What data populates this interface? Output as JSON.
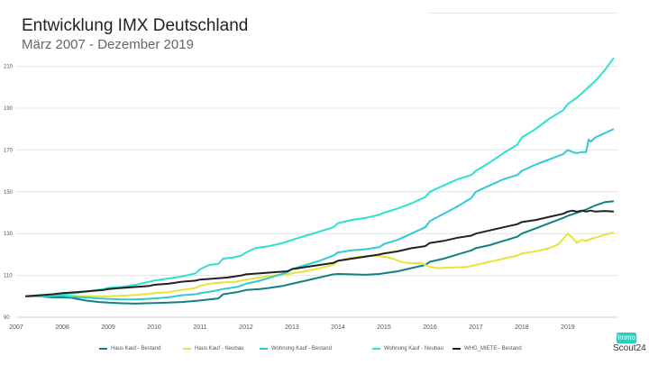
{
  "header": {
    "title": "Entwicklung IMX Deutschland",
    "subtitle": "März 2007 - Dezember 2019"
  },
  "logo": {
    "top": "Immo",
    "bottom": "Scout24"
  },
  "chart_data": {
    "type": "line",
    "title": "Entwicklung IMX Deutschland",
    "subtitle": "März 2007 - Dezember 2019",
    "xlabel": "",
    "ylabel": "",
    "xlim": [
      2007.0,
      2020.1
    ],
    "ylim": [
      90,
      215
    ],
    "y_ticks": [
      90,
      110,
      130,
      150,
      170,
      190,
      210
    ],
    "x_ticks": [
      "2007",
      "2008",
      "2009",
      "2010",
      "2011",
      "2012",
      "2013",
      "2014",
      "2015",
      "2016",
      "2017",
      "2018",
      "2019"
    ],
    "grid": "horizontal",
    "legend_position": "bottom",
    "series": [
      {
        "name": "Haus Kauf - Bestand",
        "color": "#127f86",
        "points": [
          [
            2007.2,
            100
          ],
          [
            2007.5,
            100
          ],
          [
            2007.8,
            99.5
          ],
          [
            2008.0,
            99.5
          ],
          [
            2008.2,
            99.3
          ],
          [
            2008.5,
            98
          ],
          [
            2008.8,
            97.3
          ],
          [
            2009.0,
            97
          ],
          [
            2009.3,
            96.7
          ],
          [
            2009.6,
            96.5
          ],
          [
            2009.8,
            96.7
          ],
          [
            2010.0,
            96.8
          ],
          [
            2010.3,
            97
          ],
          [
            2010.6,
            97.3
          ],
          [
            2010.9,
            97.8
          ],
          [
            2011.2,
            98.5
          ],
          [
            2011.4,
            99
          ],
          [
            2011.5,
            101
          ],
          [
            2011.8,
            102
          ],
          [
            2012.0,
            103
          ],
          [
            2012.3,
            103.5
          ],
          [
            2012.5,
            104
          ],
          [
            2012.8,
            105
          ],
          [
            2013.0,
            106
          ],
          [
            2013.3,
            107.5
          ],
          [
            2013.6,
            109
          ],
          [
            2013.9,
            110.5
          ],
          [
            2014.0,
            110.7
          ],
          [
            2014.3,
            110.5
          ],
          [
            2014.6,
            110.3
          ],
          [
            2014.9,
            110.7
          ],
          [
            2015.0,
            111
          ],
          [
            2015.3,
            112
          ],
          [
            2015.6,
            113.5
          ],
          [
            2015.9,
            115
          ],
          [
            2016.0,
            116.5
          ],
          [
            2016.3,
            118
          ],
          [
            2016.6,
            120
          ],
          [
            2016.9,
            122
          ],
          [
            2017.0,
            123
          ],
          [
            2017.3,
            124.5
          ],
          [
            2017.6,
            126.5
          ],
          [
            2017.9,
            128.5
          ],
          [
            2018.0,
            130
          ],
          [
            2018.3,
            132.5
          ],
          [
            2018.6,
            135
          ],
          [
            2018.9,
            137.5
          ],
          [
            2019.0,
            138.5
          ],
          [
            2019.2,
            140
          ],
          [
            2019.4,
            141.5
          ],
          [
            2019.6,
            143.5
          ],
          [
            2019.8,
            145
          ],
          [
            2020.0,
            145.5
          ]
        ]
      },
      {
        "name": "Haus Kauf - Neubau",
        "color": "#e8e33a",
        "points": [
          [
            2007.2,
            100
          ],
          [
            2007.5,
            100
          ],
          [
            2007.8,
            100.2
          ],
          [
            2008.0,
            100.5
          ],
          [
            2008.2,
            100.3
          ],
          [
            2008.5,
            100
          ],
          [
            2008.8,
            100
          ],
          [
            2009.0,
            100
          ],
          [
            2009.3,
            100.3
          ],
          [
            2009.6,
            100.7
          ],
          [
            2009.8,
            101
          ],
          [
            2010.0,
            101.5
          ],
          [
            2010.3,
            102
          ],
          [
            2010.6,
            103
          ],
          [
            2010.9,
            104
          ],
          [
            2011.0,
            105
          ],
          [
            2011.2,
            106
          ],
          [
            2011.4,
            106.5
          ],
          [
            2011.6,
            106.8
          ],
          [
            2011.8,
            107
          ],
          [
            2012.0,
            108
          ],
          [
            2012.3,
            109
          ],
          [
            2012.6,
            110
          ],
          [
            2012.9,
            110.5
          ],
          [
            2013.0,
            111
          ],
          [
            2013.3,
            112
          ],
          [
            2013.6,
            113.5
          ],
          [
            2013.9,
            115
          ],
          [
            2014.0,
            117
          ],
          [
            2014.3,
            118.5
          ],
          [
            2014.6,
            119.3
          ],
          [
            2014.8,
            119.5
          ],
          [
            2015.0,
            119
          ],
          [
            2015.2,
            118
          ],
          [
            2015.4,
            116.3
          ],
          [
            2015.6,
            115.8
          ],
          [
            2015.8,
            116
          ],
          [
            2015.9,
            115
          ],
          [
            2016.0,
            114
          ],
          [
            2016.2,
            113.5
          ],
          [
            2016.5,
            113.8
          ],
          [
            2016.8,
            114
          ],
          [
            2017.0,
            115
          ],
          [
            2017.3,
            116.5
          ],
          [
            2017.6,
            118
          ],
          [
            2017.9,
            119.5
          ],
          [
            2018.0,
            120.5
          ],
          [
            2018.3,
            121.5
          ],
          [
            2018.6,
            123
          ],
          [
            2018.8,
            125
          ],
          [
            2018.9,
            127.5
          ],
          [
            2019.0,
            130
          ],
          [
            2019.1,
            128
          ],
          [
            2019.2,
            125.5
          ],
          [
            2019.3,
            127
          ],
          [
            2019.4,
            126.5
          ],
          [
            2019.5,
            127.5
          ],
          [
            2019.6,
            128
          ],
          [
            2019.8,
            129.5
          ],
          [
            2020.0,
            130.5
          ]
        ]
      },
      {
        "name": "Wohnung Kauf - Bestand",
        "color": "#31c9d6",
        "points": [
          [
            2007.2,
            100
          ],
          [
            2007.5,
            100
          ],
          [
            2007.8,
            100.2
          ],
          [
            2008.0,
            100.2
          ],
          [
            2008.2,
            99.8
          ],
          [
            2008.5,
            99.5
          ],
          [
            2008.8,
            99
          ],
          [
            2009.0,
            98.8
          ],
          [
            2009.3,
            98.5
          ],
          [
            2009.6,
            98.5
          ],
          [
            2009.8,
            98.7
          ],
          [
            2010.0,
            99
          ],
          [
            2010.3,
            99.5
          ],
          [
            2010.6,
            100.5
          ],
          [
            2010.9,
            101
          ],
          [
            2011.0,
            101.5
          ],
          [
            2011.3,
            102.5
          ],
          [
            2011.5,
            103.5
          ],
          [
            2011.8,
            104.5
          ],
          [
            2012.0,
            106
          ],
          [
            2012.3,
            107.5
          ],
          [
            2012.6,
            109.5
          ],
          [
            2012.9,
            111.5
          ],
          [
            2013.0,
            113
          ],
          [
            2013.3,
            115
          ],
          [
            2013.6,
            117
          ],
          [
            2013.9,
            119.5
          ],
          [
            2014.0,
            121
          ],
          [
            2014.3,
            122
          ],
          [
            2014.6,
            122.5
          ],
          [
            2014.9,
            123.5
          ],
          [
            2015.0,
            125
          ],
          [
            2015.3,
            127
          ],
          [
            2015.6,
            130
          ],
          [
            2015.9,
            133
          ],
          [
            2016.0,
            136
          ],
          [
            2016.3,
            139.5
          ],
          [
            2016.6,
            143
          ],
          [
            2016.9,
            147
          ],
          [
            2017.0,
            150
          ],
          [
            2017.3,
            153
          ],
          [
            2017.6,
            156
          ],
          [
            2017.9,
            158
          ],
          [
            2018.0,
            160
          ],
          [
            2018.3,
            163
          ],
          [
            2018.6,
            165.5
          ],
          [
            2018.9,
            168
          ],
          [
            2019.0,
            170
          ],
          [
            2019.1,
            169
          ],
          [
            2019.2,
            168.5
          ],
          [
            2019.3,
            169
          ],
          [
            2019.4,
            169
          ],
          [
            2019.45,
            175
          ],
          [
            2019.5,
            174
          ],
          [
            2019.6,
            176
          ],
          [
            2019.8,
            178
          ],
          [
            2019.9,
            179
          ],
          [
            2020.0,
            180
          ]
        ]
      },
      {
        "name": "Wohnung Kauf - Neubau",
        "color": "#2ee0cf",
        "points": [
          [
            2007.2,
            100
          ],
          [
            2007.5,
            100
          ],
          [
            2007.8,
            100.5
          ],
          [
            2008.0,
            101
          ],
          [
            2008.3,
            101.5
          ],
          [
            2008.6,
            102.5
          ],
          [
            2008.9,
            103.5
          ],
          [
            2009.0,
            104
          ],
          [
            2009.3,
            104.5
          ],
          [
            2009.6,
            105.5
          ],
          [
            2009.8,
            106.5
          ],
          [
            2010.0,
            107.5
          ],
          [
            2010.3,
            108.5
          ],
          [
            2010.6,
            109.5
          ],
          [
            2010.9,
            111
          ],
          [
            2011.0,
            113
          ],
          [
            2011.2,
            115
          ],
          [
            2011.4,
            115.5
          ],
          [
            2011.5,
            118
          ],
          [
            2011.7,
            118.5
          ],
          [
            2011.9,
            119.5
          ],
          [
            2012.0,
            121
          ],
          [
            2012.2,
            123
          ],
          [
            2012.5,
            124
          ],
          [
            2012.8,
            125.5
          ],
          [
            2013.0,
            127
          ],
          [
            2013.3,
            129
          ],
          [
            2013.6,
            131
          ],
          [
            2013.9,
            133
          ],
          [
            2014.0,
            135
          ],
          [
            2014.3,
            136.5
          ],
          [
            2014.6,
            137.5
          ],
          [
            2014.9,
            139
          ],
          [
            2015.0,
            140
          ],
          [
            2015.3,
            142
          ],
          [
            2015.6,
            144.5
          ],
          [
            2015.9,
            147.5
          ],
          [
            2016.0,
            150
          ],
          [
            2016.3,
            153
          ],
          [
            2016.6,
            156
          ],
          [
            2016.9,
            158
          ],
          [
            2017.0,
            160
          ],
          [
            2017.3,
            164
          ],
          [
            2017.6,
            168.5
          ],
          [
            2017.9,
            172.5
          ],
          [
            2018.0,
            176
          ],
          [
            2018.3,
            180
          ],
          [
            2018.6,
            185
          ],
          [
            2018.9,
            189
          ],
          [
            2019.0,
            192
          ],
          [
            2019.2,
            195
          ],
          [
            2019.4,
            199
          ],
          [
            2019.6,
            203
          ],
          [
            2019.8,
            208
          ],
          [
            2020.0,
            214
          ]
        ]
      },
      {
        "name": "WHG_MIETE - Bestand",
        "color": "#222222",
        "points": [
          [
            2007.2,
            100
          ],
          [
            2007.5,
            100.5
          ],
          [
            2007.8,
            101
          ],
          [
            2008.0,
            101.5
          ],
          [
            2008.3,
            102
          ],
          [
            2008.6,
            102.5
          ],
          [
            2008.9,
            103
          ],
          [
            2009.0,
            103.5
          ],
          [
            2009.3,
            104
          ],
          [
            2009.6,
            104.5
          ],
          [
            2009.9,
            105
          ],
          [
            2010.0,
            105.5
          ],
          [
            2010.3,
            106
          ],
          [
            2010.6,
            107
          ],
          [
            2010.9,
            107.5
          ],
          [
            2011.0,
            108
          ],
          [
            2011.3,
            108.5
          ],
          [
            2011.6,
            109
          ],
          [
            2011.9,
            110
          ],
          [
            2012.0,
            110.5
          ],
          [
            2012.3,
            111
          ],
          [
            2012.6,
            111.5
          ],
          [
            2012.9,
            112
          ],
          [
            2013.0,
            113
          ],
          [
            2013.3,
            114
          ],
          [
            2013.6,
            115
          ],
          [
            2013.9,
            116
          ],
          [
            2014.0,
            117
          ],
          [
            2014.3,
            118
          ],
          [
            2014.6,
            119
          ],
          [
            2014.9,
            120
          ],
          [
            2015.0,
            120.5
          ],
          [
            2015.3,
            121.5
          ],
          [
            2015.6,
            123
          ],
          [
            2015.9,
            124
          ],
          [
            2016.0,
            125.5
          ],
          [
            2016.3,
            126.5
          ],
          [
            2016.6,
            128
          ],
          [
            2016.9,
            129
          ],
          [
            2017.0,
            130
          ],
          [
            2017.3,
            131.5
          ],
          [
            2017.6,
            133
          ],
          [
            2017.9,
            134.5
          ],
          [
            2018.0,
            135.5
          ],
          [
            2018.3,
            136.5
          ],
          [
            2018.6,
            138
          ],
          [
            2018.9,
            139.5
          ],
          [
            2019.0,
            140.5
          ],
          [
            2019.1,
            141
          ],
          [
            2019.2,
            140.5
          ],
          [
            2019.3,
            141
          ],
          [
            2019.4,
            140.5
          ],
          [
            2019.5,
            141
          ],
          [
            2019.6,
            140.5
          ],
          [
            2019.8,
            140.8
          ],
          [
            2020.0,
            140.5
          ]
        ]
      }
    ]
  }
}
